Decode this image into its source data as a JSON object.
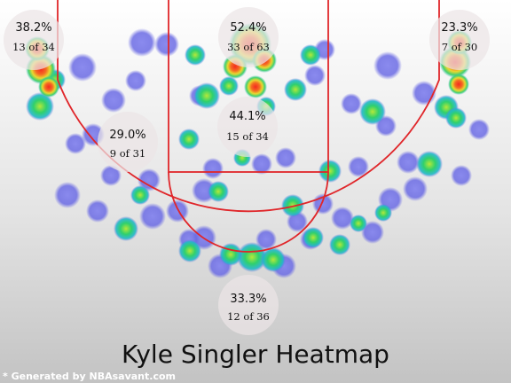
{
  "chart_data": {
    "type": "heatmap",
    "title": "Kyle Singler Heatmap",
    "footer": "* Generated by NBAsavant.com",
    "zones": [
      {
        "name": "left-corner-three",
        "pct": "38.2%",
        "made_attempted": "13 of 34"
      },
      {
        "name": "restricted-area",
        "pct": "52.4%",
        "made_attempted": "33 of 63"
      },
      {
        "name": "right-corner-three",
        "pct": "23.3%",
        "made_attempted": "7 of 30"
      },
      {
        "name": "paint-non-ra",
        "pct": "44.1%",
        "made_attempted": "15 of 34"
      },
      {
        "name": "left-midrange",
        "pct": "29.0%",
        "made_attempted": "9 of 31"
      },
      {
        "name": "top-of-key-three",
        "pct": "33.3%",
        "made_attempted": "12 of 36"
      }
    ]
  },
  "colors": {
    "court_line": "#e0262a",
    "bubble": "#ece4e6",
    "low": "#6e6ee6",
    "mid": "#28d27a",
    "high": "#f0302a"
  }
}
